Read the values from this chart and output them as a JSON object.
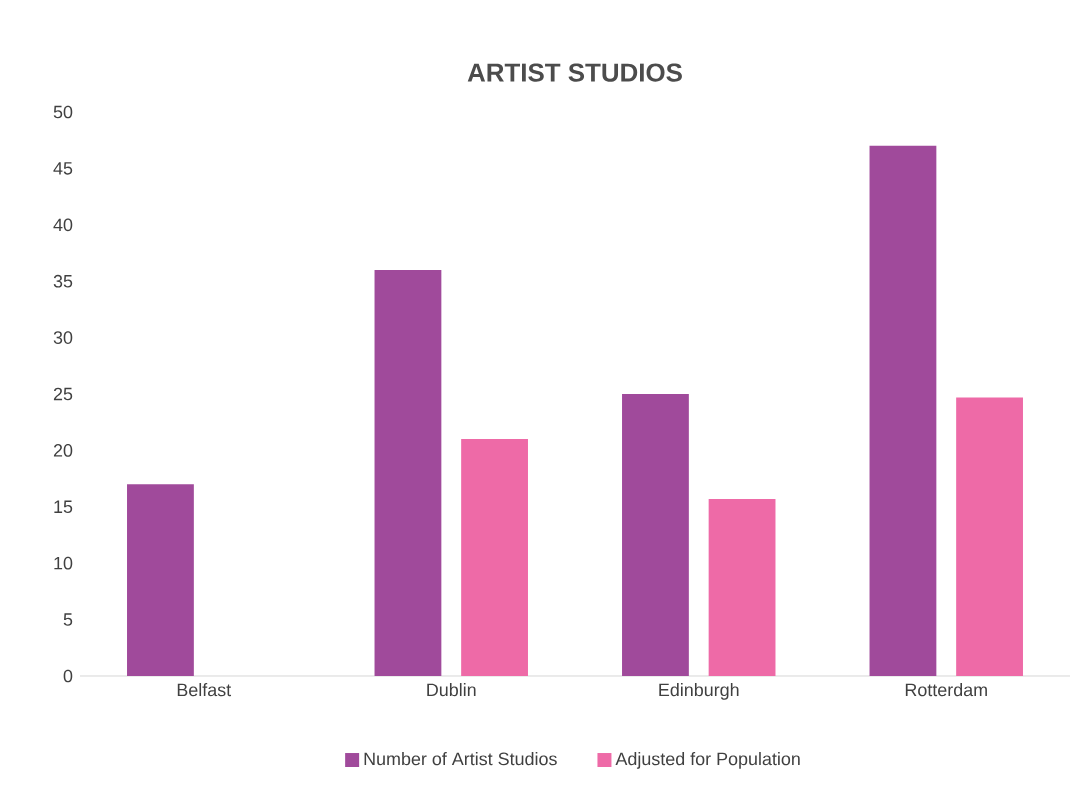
{
  "chart_data": {
    "type": "bar",
    "title": "ARTIST STUDIOS",
    "categories": [
      "Belfast",
      "Dublin",
      "Edinburgh",
      "Rotterdam"
    ],
    "series": [
      {
        "name": "Number of Artist Studios",
        "color": "#a04a9b",
        "values": [
          17,
          36,
          25,
          47
        ]
      },
      {
        "name": "Adjusted for Population",
        "color": "#ee6aa7",
        "values": [
          null,
          21,
          15.7,
          24.7
        ]
      }
    ],
    "ylim": [
      0,
      50
    ],
    "yticks": [
      0,
      5,
      10,
      15,
      20,
      25,
      30,
      35,
      40,
      45,
      50
    ],
    "grid": false,
    "legend": "bottom"
  }
}
